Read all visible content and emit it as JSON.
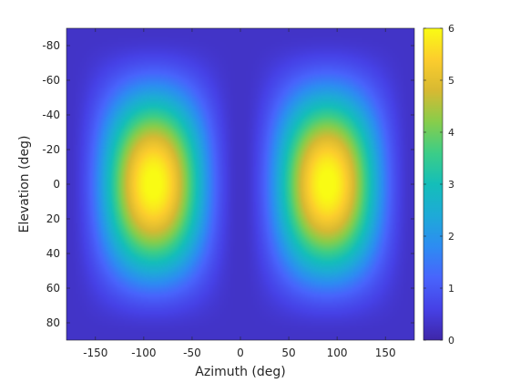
{
  "chart_data": {
    "type": "heatmap",
    "title": "",
    "xlabel": "Azimuth (deg)",
    "ylabel": "Elevation (deg)",
    "xlim": [
      -180,
      180
    ],
    "ylim": [
      -90,
      90
    ],
    "y_direction": "reversed",
    "x_ticks": [
      -150,
      -100,
      -50,
      0,
      50,
      100,
      150
    ],
    "y_ticks": [
      -80,
      -60,
      -40,
      -20,
      0,
      20,
      40,
      60,
      80
    ],
    "x_tick_labels": [
      "-150",
      "-100",
      "-50",
      "0",
      "50",
      "100",
      "150"
    ],
    "y_tick_labels": [
      "-80",
      "-60",
      "-40",
      "-20",
      "0",
      "20",
      "40",
      "60",
      "80"
    ],
    "colorbar": {
      "limits": [
        0,
        6
      ],
      "ticks": [
        0,
        1,
        2,
        3,
        4,
        5,
        6
      ],
      "tick_labels": [
        "0",
        "1",
        "2",
        "3",
        "4",
        "5",
        "6"
      ],
      "colormap": "parula"
    },
    "value_range": [
      0.3,
      6.1
    ],
    "peaks": [
      {
        "azimuth": -90,
        "elevation": 0,
        "value": 6.1
      },
      {
        "azimuth": 90,
        "elevation": 0,
        "value": 6.1
      }
    ],
    "minima": [
      {
        "azimuth": 0,
        "elevation": 0,
        "value": 0.3
      },
      {
        "azimuth": -180,
        "elevation": 0,
        "value": 0.3
      },
      {
        "azimuth": 180,
        "elevation": 0,
        "value": 0.3
      }
    ],
    "grid": false,
    "legend": "colorbar-right"
  }
}
